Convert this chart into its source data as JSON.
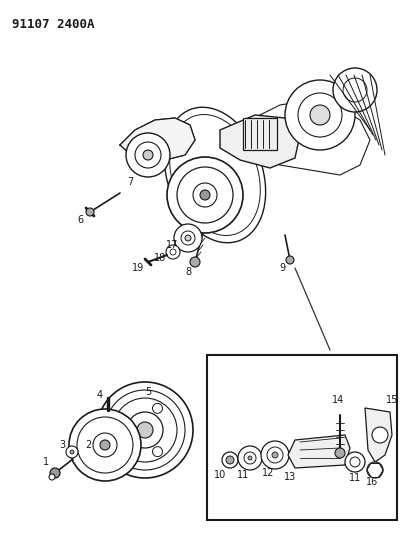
{
  "title": "91107 2400A",
  "bg_color": "#ffffff",
  "line_color": "#1a1a1a",
  "fig_width": 4.02,
  "fig_height": 5.33,
  "dpi": 100
}
